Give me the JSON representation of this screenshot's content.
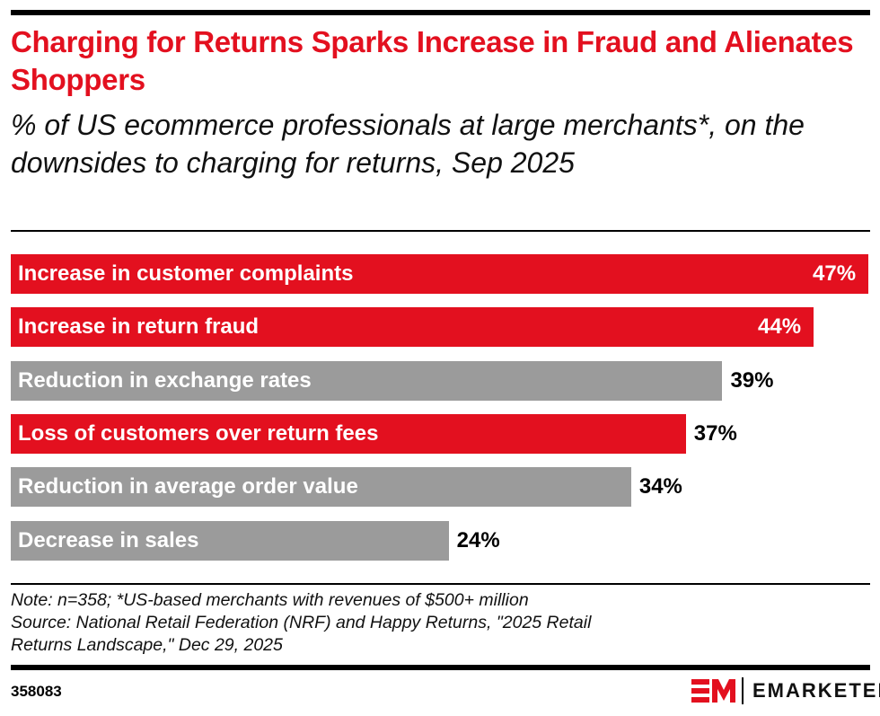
{
  "title": "Charging for Returns Sparks Increase in Fraud and Alienates Shoppers",
  "subtitle": "% of US ecommerce professionals at large merchants*, on the downsides to charging for returns, Sep 2025",
  "chart_data": {
    "type": "bar",
    "orientation": "horizontal",
    "categories": [
      "Increase in customer complaints",
      "Increase in return fraud",
      "Reduction in exchange rates",
      "Loss of customers over return fees",
      "Reduction in average order value",
      "Decrease in sales"
    ],
    "values": [
      47,
      44,
      39,
      37,
      34,
      24
    ],
    "value_labels": [
      "47%",
      "44%",
      "39%",
      "37%",
      "34%",
      "24%"
    ],
    "highlighted": [
      true,
      true,
      false,
      true,
      false,
      false
    ],
    "colors": {
      "highlight": "#e3101f",
      "default": "#9b9b9b"
    },
    "xlim": [
      0,
      47
    ],
    "unit": "%"
  },
  "note": "Note: n=358; *US-based merchants with revenues of $500+ million",
  "source": "Source: National Retail Federation (NRF) and Happy Returns, \"2025 Retail Returns Landscape,\" Dec 29, 2025",
  "chart_id": "358083",
  "brand": {
    "mark": "EM",
    "name": "EMARKETER",
    "color": "#e3101f"
  }
}
